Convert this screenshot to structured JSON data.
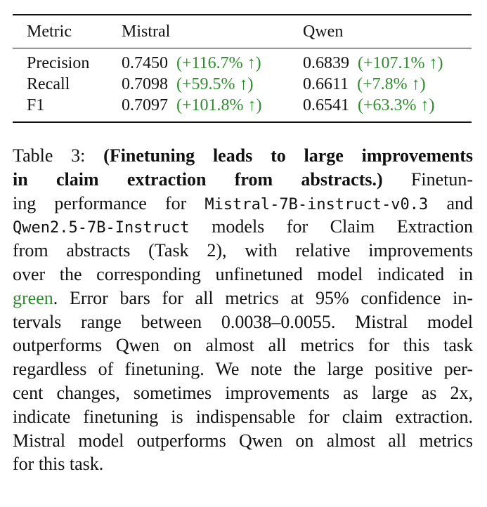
{
  "table": {
    "headers": [
      "Metric",
      "Mistral",
      "Qwen"
    ],
    "rows": [
      {
        "metric": "Precision",
        "mistral": "0.7450",
        "mistral_delta": "(+116.7% ↑)",
        "qwen": "0.6839",
        "qwen_delta": "(+107.1% ↑)"
      },
      {
        "metric": "Recall",
        "mistral": "0.7098",
        "mistral_delta": "(+59.5% ↑)",
        "qwen": "0.6611",
        "qwen_delta": "(+7.8% ↑)"
      },
      {
        "metric": "F1",
        "mistral": "0.7097",
        "mistral_delta": "(+101.8% ↑)",
        "qwen": "0.6541",
        "qwen_delta": "(+63.3% ↑)"
      }
    ],
    "delta_color": "#2e8b2e"
  },
  "caption": {
    "label": "Table 3:",
    "bold_title_line1": "(Finetuning leads to large improvements",
    "bold_title_line2": "in claim extraction from abstracts.)",
    "line2_rest": "Finetun-",
    "line3_a": "ing performance for",
    "line3_mono": "Mistral-7B-instruct-v0.3",
    "line3_b": "and",
    "line4_mono": "Qwen2.5-7B-Instruct",
    "line4_b": "models for Claim Extraction",
    "line5": "from abstracts (Task 2), with relative improvements",
    "line6": "over the corresponding unfinetuned model indicated in",
    "line7_green": "green",
    "line7_rest": ". Error bars for all metrics at 95% confidence in-",
    "line8": "tervals range between 0.0038–0.0055. Mistral model",
    "line9": "outperforms Qwen on almost all metrics for this task",
    "line10": "regardless of finetuning. We note the large positive per-",
    "line11": "cent changes, sometimes improvements as large as 2x,",
    "line12": "indicate finetuning is indispensable for claim extraction.",
    "line13": "Mistral model outperforms Qwen on almost all metrics",
    "line14": "for this task."
  }
}
